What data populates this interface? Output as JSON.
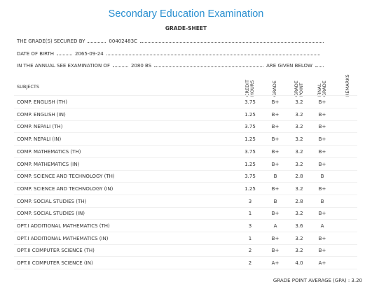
{
  "header": {
    "title": "Secondary Education Examination",
    "subtitle": "GRADE-SHEET"
  },
  "info": {
    "secured_by_label": "THE GRADE(S) SECURED BY",
    "symbol_no": "00402483C",
    "dob_label": "DATE OF BIRTH",
    "dob": "2065-09-24",
    "exam_label": "IN THE ANNUAL SEE EXAMINATION OF",
    "exam_year": "2080 BS",
    "exam_suffix": "ARE GIVEN BELOW"
  },
  "table": {
    "headers": [
      "SUBJECTS",
      "CREDIT HOURS",
      "GRADE",
      "GRADE POINT",
      "FINAL GRADE",
      "REMARKS"
    ],
    "rows": [
      [
        "COMP. ENGLISH (TH)",
        "3.75",
        "B+",
        "3.2",
        "B+"
      ],
      [
        "COMP. ENGLISH (IN)",
        "1.25",
        "B+",
        "3.2",
        "B+"
      ],
      [
        "COMP. NEPALI (TH)",
        "3.75",
        "B+",
        "3.2",
        "B+"
      ],
      [
        "COMP. NEPALI (IN)",
        "1.25",
        "B+",
        "3.2",
        "B+"
      ],
      [
        "COMP. MATHEMATICS (TH)",
        "3.75",
        "B+",
        "3.2",
        "B+"
      ],
      [
        "COMP. MATHEMATICS (IN)",
        "1.25",
        "B+",
        "3.2",
        "B+"
      ],
      [
        "COMP. SCIENCE AND TECHNOLOGY (TH)",
        "3.75",
        "B",
        "2.8",
        "B"
      ],
      [
        "COMP. SCIENCE AND TECHNOLOGY (IN)",
        "1.25",
        "B+",
        "3.2",
        "B+"
      ],
      [
        "COMP. SOCIAL STUDIES (TH)",
        "3",
        "B",
        "2.8",
        "B"
      ],
      [
        "COMP. SOCIAL STUDIES (IN)",
        "1",
        "B+",
        "3.2",
        "B+"
      ],
      [
        "OPT.I ADDITIONAL MATHEMATICS (TH)",
        "3",
        "A",
        "3.6",
        "A"
      ],
      [
        "OPT.I ADDITIONAL MATHEMATICS (IN)",
        "1",
        "B+",
        "3.2",
        "B+"
      ],
      [
        "OPT.II COMPUTER SCIENCE (TH)",
        "2",
        "B+",
        "3.2",
        "B+"
      ],
      [
        "OPT.II COMPUTER SCIENCE (IN)",
        "2",
        "A+",
        "4.0",
        "A+"
      ]
    ]
  },
  "footer": {
    "gpa_label": "GRADE POINT AVERAGE (GPA) :",
    "gpa": "3.20"
  }
}
